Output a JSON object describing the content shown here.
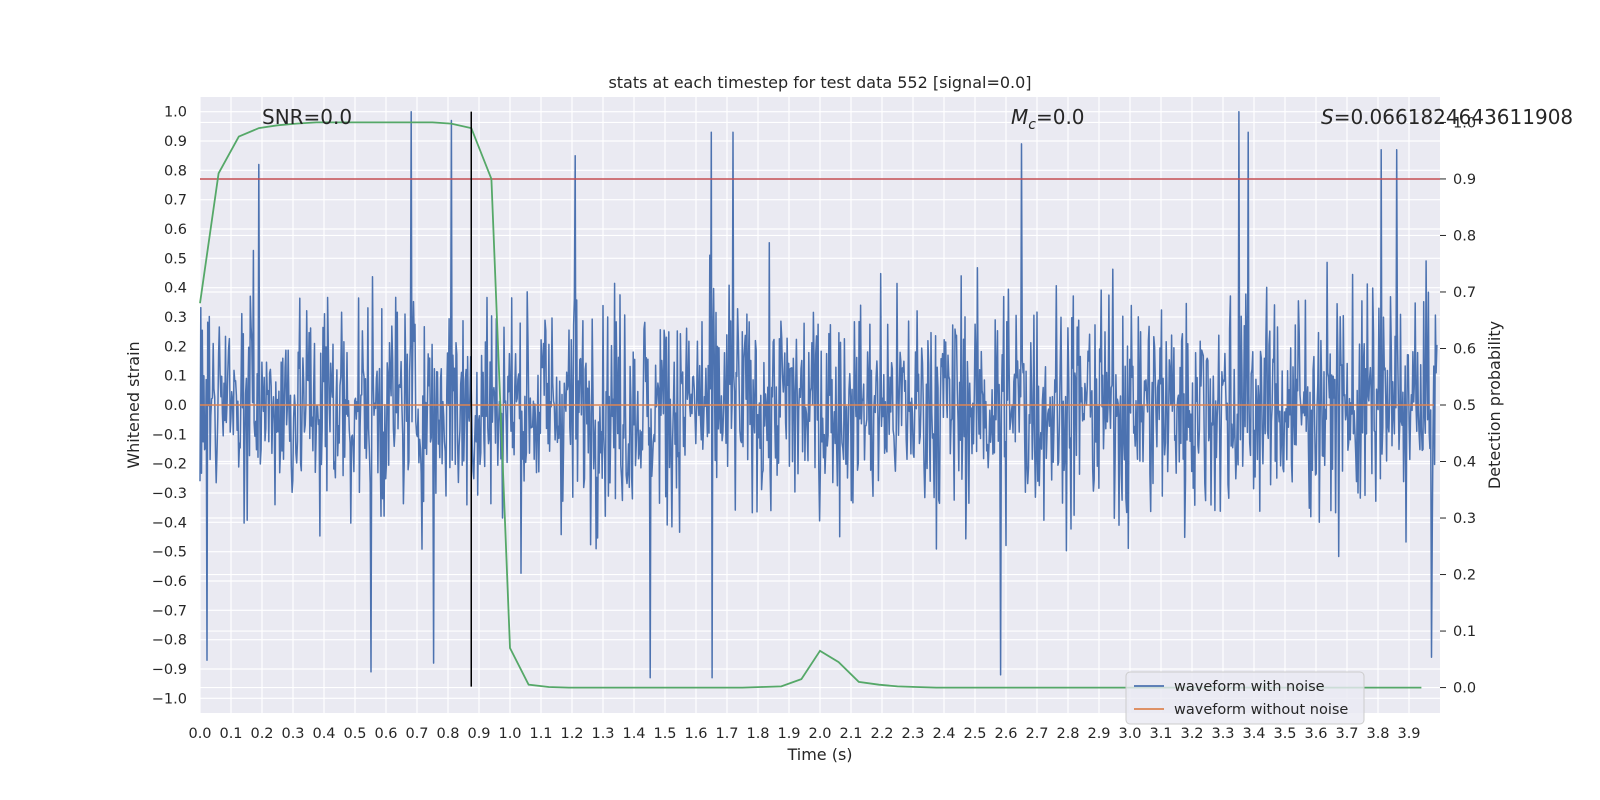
{
  "chart_data": {
    "type": "line",
    "title": "stats at each timestep for test data 552 [signal=0.0]",
    "xlabel": "Time (s)",
    "ylabel": "Whitened strain",
    "y2label": "Detection probability",
    "xlim": [
      -0.0,
      4.0
    ],
    "ylim": [
      -1.05,
      1.05
    ],
    "y2lim": [
      -0.045,
      1.045
    ],
    "xticks": [
      "0.0",
      "0.1",
      "0.2",
      "0.3",
      "0.4",
      "0.5",
      "0.6",
      "0.7",
      "0.8",
      "0.9",
      "1.0",
      "1.1",
      "1.2",
      "1.3",
      "1.4",
      "1.5",
      "1.6",
      "1.7",
      "1.8",
      "1.9",
      "2.0",
      "2.1",
      "2.2",
      "2.3",
      "2.4",
      "2.5",
      "2.6",
      "2.7",
      "2.8",
      "2.9",
      "3.0",
      "3.1",
      "3.2",
      "3.3",
      "3.4",
      "3.5",
      "3.6",
      "3.7",
      "3.8",
      "3.9"
    ],
    "yticks": [
      "1.0",
      "0.9",
      "0.8",
      "0.7",
      "0.6",
      "0.5",
      "0.4",
      "0.3",
      "0.2",
      "0.1",
      "0.0",
      "−0.1",
      "−0.2",
      "−0.3",
      "−0.4",
      "−0.5",
      "−0.6",
      "−0.7",
      "−0.8",
      "−0.9",
      "−1.0"
    ],
    "y2ticks": [
      "1.0",
      "0.9",
      "0.8",
      "0.7",
      "0.6",
      "0.5",
      "0.4",
      "0.3",
      "0.2",
      "0.1",
      "0.0"
    ],
    "annotations": {
      "snr": "SNR=0.0",
      "mc_symbol": "M",
      "mc_sub": "c",
      "mc_value": "=0.0",
      "s_symbol": "S",
      "s_value": "=0.0661824643611908"
    },
    "series": [
      {
        "name": "waveform with noise",
        "color": "#4c72b0",
        "axis": "left",
        "kind": "noise",
        "envelope_peaks": [
          {
            "x": 0.68,
            "y": 1.0
          },
          {
            "x": 0.81,
            "y": 0.97
          },
          {
            "x": 0.19,
            "y": 0.82
          },
          {
            "x": 1.21,
            "y": 0.85
          },
          {
            "x": 1.65,
            "y": 0.93
          },
          {
            "x": 1.72,
            "y": 0.93
          },
          {
            "x": 2.65,
            "y": 0.89
          },
          {
            "x": 3.35,
            "y": 1.0
          },
          {
            "x": 3.38,
            "y": 0.93
          },
          {
            "x": 3.81,
            "y": 0.87
          },
          {
            "x": 3.86,
            "y": 0.87
          }
        ],
        "envelope_troughs": [
          {
            "x": 0.02,
            "y": -0.87
          },
          {
            "x": 0.55,
            "y": -0.91
          },
          {
            "x": 0.75,
            "y": -0.88
          },
          {
            "x": 1.45,
            "y": -0.93
          },
          {
            "x": 1.65,
            "y": -0.93
          },
          {
            "x": 2.58,
            "y": -0.92
          },
          {
            "x": 3.97,
            "y": -0.86
          }
        ]
      },
      {
        "name": "waveform without noise",
        "color": "#dd8452",
        "axis": "left",
        "x": [
          0.0,
          3.98
        ],
        "y": [
          0.0,
          0.0
        ]
      },
      {
        "name": "detection probability",
        "color": "#55a868",
        "axis": "right",
        "x": [
          0.0,
          0.06,
          0.125,
          0.19,
          0.25,
          0.31,
          0.375,
          0.44,
          0.5,
          0.56,
          0.625,
          0.69,
          0.75,
          0.81,
          0.875,
          0.94,
          1.0,
          1.06,
          1.125,
          1.19,
          1.25,
          1.31,
          1.375,
          1.44,
          1.5,
          1.56,
          1.625,
          1.69,
          1.75,
          1.81,
          1.875,
          1.94,
          2.0,
          2.06,
          2.125,
          2.19,
          2.25,
          2.31,
          2.375,
          2.44,
          2.5,
          2.56,
          2.625,
          2.69,
          2.75,
          2.81,
          2.875,
          2.94,
          3.0,
          3.06,
          3.125,
          3.19,
          3.25,
          3.31,
          3.375,
          3.44,
          3.5,
          3.56,
          3.625,
          3.69,
          3.75,
          3.81,
          3.875,
          3.94
        ],
        "y": [
          0.68,
          0.91,
          0.975,
          0.99,
          0.995,
          0.998,
          1.0,
          1.0,
          1.0,
          1.0,
          1.0,
          1.0,
          1.0,
          0.998,
          0.99,
          0.9,
          0.07,
          0.005,
          0.001,
          0.0,
          0.0,
          0.0,
          0.0,
          0.0,
          0.0,
          0.0,
          0.0,
          0.0,
          0.0,
          0.001,
          0.002,
          0.015,
          0.065,
          0.045,
          0.01,
          0.005,
          0.002,
          0.001,
          0.0,
          0.0,
          0.0,
          0.0,
          0.0,
          0.0,
          0.0,
          0.0,
          0.0,
          0.0,
          0.0,
          0.0,
          0.0,
          0.0,
          0.0,
          0.0,
          0.0,
          0.0,
          0.0,
          0.0,
          0.0,
          0.0,
          0.0,
          0.0,
          0.0,
          0.0
        ]
      }
    ],
    "threshold": {
      "axis": "right",
      "y": 0.9,
      "color": "#c44e52"
    },
    "marker_line": {
      "x": 0.875,
      "y_from": -0.96,
      "y_to": 1.0,
      "color": "#000000"
    },
    "legend": {
      "placement": "lower-right",
      "entries": [
        {
          "label": "waveform with noise",
          "color": "#4c72b0"
        },
        {
          "label": "waveform without noise",
          "color": "#dd8452"
        }
      ]
    },
    "grid": true,
    "background": "#eaeaf2"
  }
}
